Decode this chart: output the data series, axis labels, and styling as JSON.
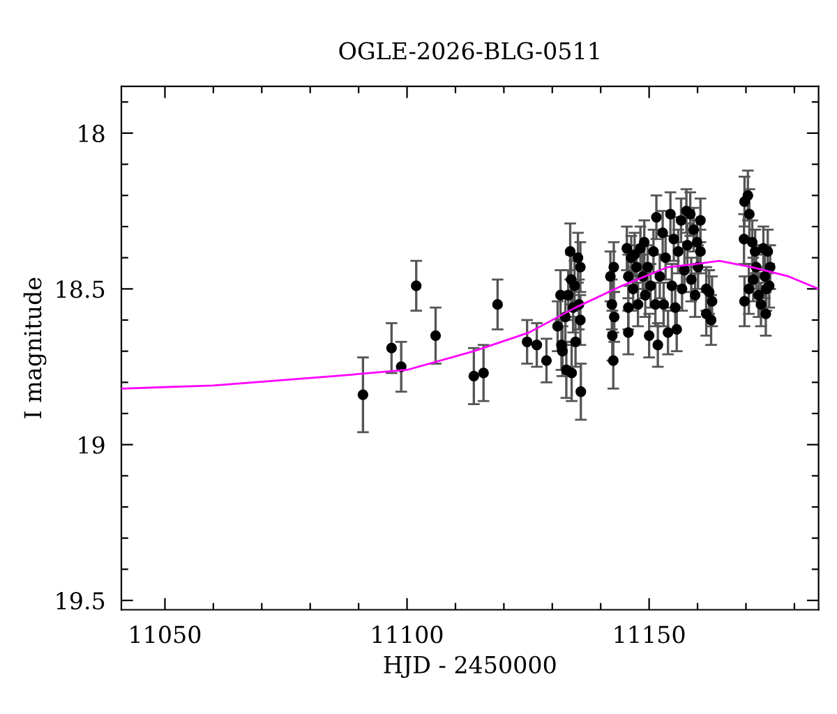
{
  "chart_data": {
    "type": "scatter",
    "title": "OGLE-2026-BLG-0511",
    "xlabel": "HJD - 2450000",
    "ylabel": "I magnitude",
    "xlim": [
      11041,
      11185
    ],
    "ylim": [
      19.53,
      17.85
    ],
    "xticks": [
      11050,
      {
        "value": 11060,
        "label": null
      },
      {
        "value": 11070,
        "label": null
      },
      {
        "value": 11080,
        "label": null
      },
      {
        "value": 11090,
        "label": null
      },
      11100,
      {
        "value": 11110,
        "label": null
      },
      {
        "value": 11120,
        "label": null
      },
      {
        "value": 11130,
        "label": null
      },
      {
        "value": 11140,
        "label": null
      },
      11150,
      {
        "value": 11160,
        "label": null
      },
      {
        "value": 11170,
        "label": null
      },
      {
        "value": 11180,
        "label": null
      }
    ],
    "yticks": [
      {
        "value": 17.9,
        "label": null
      },
      18,
      {
        "value": 18.1,
        "label": null
      },
      {
        "value": 18.2,
        "label": null
      },
      {
        "value": 18.3,
        "label": null
      },
      {
        "value": 18.4,
        "label": null
      },
      18.5,
      {
        "value": 18.6,
        "label": null
      },
      {
        "value": 18.7,
        "label": null
      },
      {
        "value": 18.8,
        "label": null
      },
      {
        "value": 18.9,
        "label": null
      },
      19,
      {
        "value": 19.1,
        "label": null
      },
      {
        "value": 19.2,
        "label": null
      },
      {
        "value": 19.3,
        "label": null
      },
      {
        "value": 19.4,
        "label": null
      },
      19.5
    ],
    "marker": "circle",
    "grid": false,
    "legend": false,
    "series": [
      {
        "color": "#000000",
        "x": [
          11090.9,
          11096.8,
          11098.8,
          11101.9,
          11105.9,
          11113.8,
          11115.8,
          11118.7,
          11124.8,
          11126.8,
          11128.8,
          11131.1,
          11131.7,
          11131.9,
          11132.1,
          11132.7,
          11132.9,
          11133.3,
          11133.7,
          11133.9,
          11134.0,
          11134.3,
          11134.6,
          11134.8,
          11135.3,
          11135.5,
          11135.8,
          11135.8,
          11135.9,
          11142.0,
          11142.3,
          11142.4,
          11142.6,
          11142.7,
          11142.8,
          11145.4,
          11145.7,
          11145.7,
          11145.7,
          11146.3,
          11146.7,
          11147.0,
          11147.4,
          11147.7,
          11148.2,
          11148.7,
          11149.0,
          11149.2,
          11149.7,
          11150.0,
          11150.3,
          11150.9,
          11151.3,
          11151.5,
          11151.8,
          11152.2,
          11152.8,
          11153.0,
          11153.4,
          11153.9,
          11154.4,
          11154.7,
          11155.1,
          11155.4,
          11155.7,
          11156.0,
          11156.6,
          11156.8,
          11157.3,
          11157.7,
          11157.9,
          11158.5,
          11158.7,
          11159.2,
          11159.5,
          11159.9,
          11160.1,
          11160.6,
          11160.6,
          11161.8,
          11162.4,
          11161.8,
          11162.8,
          11163.0,
          11169.7,
          11170.4,
          11170.7,
          11169.6,
          11169.7,
          11170.6,
          11171.3,
          11171.9,
          11172.1,
          11171.5,
          11172.6,
          11173.1,
          11173.6,
          11173.9,
          11174.1,
          11174.5,
          11174.8,
          11175.0,
          11174.2
        ],
        "values": [
          18.84,
          18.69,
          18.75,
          18.49,
          18.65,
          18.78,
          18.77,
          18.55,
          18.67,
          18.68,
          18.73,
          18.62,
          18.52,
          18.68,
          18.7,
          18.59,
          18.76,
          18.52,
          18.38,
          18.47,
          18.77,
          18.56,
          18.49,
          18.67,
          18.4,
          18.55,
          18.43,
          18.6,
          18.83,
          18.46,
          18.55,
          18.65,
          18.73,
          18.43,
          18.59,
          18.37,
          18.46,
          18.56,
          18.64,
          18.4,
          18.5,
          18.39,
          18.43,
          18.55,
          18.37,
          18.46,
          18.35,
          18.52,
          18.43,
          18.65,
          18.49,
          18.38,
          18.55,
          18.27,
          18.68,
          18.46,
          18.32,
          18.55,
          18.4,
          18.64,
          18.26,
          18.49,
          18.34,
          18.56,
          18.63,
          18.38,
          18.28,
          18.5,
          18.44,
          18.25,
          18.36,
          18.26,
          18.47,
          18.31,
          18.52,
          18.35,
          18.43,
          18.28,
          18.38,
          18.5,
          18.51,
          18.58,
          18.6,
          18.54,
          18.22,
          18.2,
          18.26,
          18.34,
          18.54,
          18.5,
          18.35,
          18.38,
          18.43,
          18.47,
          18.52,
          18.55,
          18.37,
          18.46,
          18.58,
          18.38,
          18.49,
          18.43,
          18.5
        ],
        "errors": [
          0.12,
          0.08,
          0.08,
          0.08,
          0.09,
          0.09,
          0.09,
          0.08,
          0.07,
          0.07,
          0.07,
          0.08,
          0.08,
          0.08,
          0.08,
          0.08,
          0.09,
          0.08,
          0.09,
          0.08,
          0.09,
          0.08,
          0.08,
          0.08,
          0.08,
          0.08,
          0.08,
          0.08,
          0.09,
          0.08,
          0.08,
          0.08,
          0.09,
          0.08,
          0.08,
          0.07,
          0.07,
          0.07,
          0.07,
          0.07,
          0.07,
          0.07,
          0.07,
          0.07,
          0.07,
          0.07,
          0.07,
          0.07,
          0.07,
          0.07,
          0.07,
          0.07,
          0.07,
          0.07,
          0.07,
          0.07,
          0.07,
          0.07,
          0.07,
          0.07,
          0.07,
          0.07,
          0.07,
          0.07,
          0.07,
          0.07,
          0.07,
          0.07,
          0.07,
          0.07,
          0.07,
          0.07,
          0.07,
          0.07,
          0.07,
          0.07,
          0.07,
          0.07,
          0.07,
          0.07,
          0.07,
          0.07,
          0.08,
          0.08,
          0.08,
          0.08,
          0.08,
          0.08,
          0.08,
          0.08,
          0.07,
          0.07,
          0.07,
          0.07,
          0.07,
          0.07,
          0.07,
          0.07,
          0.07,
          0.07,
          0.07,
          0.07,
          0.07
        ]
      },
      {
        "type": "line",
        "color": "#ff00ff",
        "marker": "none",
        "line_style": "solid",
        "x": [
          11041,
          11060,
          11085,
          11100,
          11113.8,
          11125.2,
          11134.8,
          11144.4,
          11153.9,
          11159.7,
          11164.5,
          11171.2,
          11178.8,
          11185
        ],
        "values": [
          18.82,
          18.81,
          18.78,
          18.76,
          18.7,
          18.64,
          18.56,
          18.49,
          18.43,
          18.42,
          18.41,
          18.43,
          18.46,
          18.5
        ]
      }
    ]
  }
}
